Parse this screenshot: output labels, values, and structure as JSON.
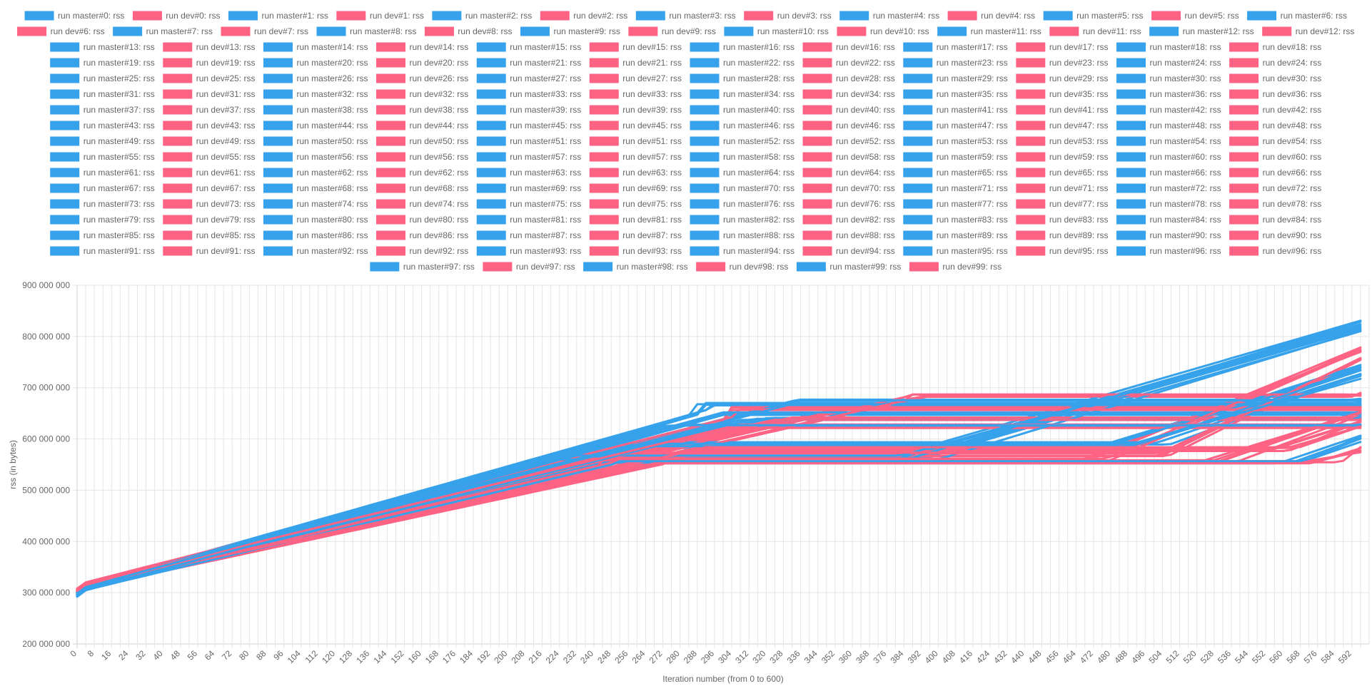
{
  "chart_data": {
    "type": "line",
    "title": "",
    "xlabel": "Iteration number (from 0 to 600)",
    "ylabel": "rss (in bytes)",
    "xlim": [
      0,
      600
    ],
    "ylim": [
      200000000,
      900000000
    ],
    "y_ticks": [
      200000000,
      300000000,
      400000000,
      500000000,
      600000000,
      700000000,
      800000000,
      900000000
    ],
    "y_tick_labels": [
      "200 000 000",
      "300 000 000",
      "400 000 000",
      "500 000 000",
      "600 000 000",
      "700 000 000",
      "800 000 000",
      "900 000 000"
    ],
    "x_tick_step": 4,
    "x_tick_label_step": 8,
    "x_tick_max": 596,
    "grid": true,
    "legend_position": "top",
    "colors": {
      "master": "#36a2eb",
      "dev": "#ff6384",
      "master_fill": "rgba(54,162,235,0.5)",
      "dev_fill": "rgba(255,99,132,0.5)"
    },
    "legend_entries": [
      "run master#0: rss",
      "run dev#0: rss",
      "run master#1: rss",
      "run dev#1: rss",
      "run master#2: rss",
      "run dev#2: rss",
      "run master#3: rss",
      "run dev#3: rss",
      "run master#4: rss",
      "run dev#4: rss",
      "run master#5: rss",
      "run dev#5: rss",
      "run master#6: rss",
      "run dev#6: rss",
      "run master#7: rss",
      "run dev#7: rss",
      "run master#8: rss",
      "run dev#8: rss",
      "run master#9: rss",
      "run dev#9: rss",
      "run master#10: rss",
      "run dev#10: rss",
      "run master#11: rss",
      "run dev#11: rss",
      "run master#12: rss",
      "run dev#12: rss",
      "run master#13: rss",
      "run dev#13: rss",
      "run master#14: rss",
      "run dev#14: rss",
      "run master#15: rss",
      "run dev#15: rss",
      "run master#16: rss",
      "run dev#16: rss",
      "run master#17: rss",
      "run dev#17: rss",
      "run master#18: rss",
      "run dev#18: rss",
      "run master#19: rss",
      "run dev#19: rss",
      "run master#20: rss",
      "run dev#20: rss",
      "run master#21: rss",
      "run dev#21: rss",
      "run master#22: rss",
      "run dev#22: rss",
      "run master#23: rss",
      "run dev#23: rss",
      "run master#24: rss",
      "run dev#24: rss",
      "run master#25: rss",
      "run dev#25: rss",
      "run master#26: rss",
      "run dev#26: rss",
      "run master#27: rss",
      "run dev#27: rss",
      "run master#28: rss",
      "run dev#28: rss",
      "run master#29: rss",
      "run dev#29: rss",
      "run master#30: rss",
      "run dev#30: rss",
      "run master#31: rss",
      "run dev#31: rss",
      "run master#32: rss",
      "run dev#32: rss",
      "run master#33: rss",
      "run dev#33: rss",
      "run master#34: rss",
      "run dev#34: rss",
      "run master#35: rss",
      "run dev#35: rss",
      "run master#36: rss",
      "run dev#36: rss",
      "run master#37: rss",
      "run dev#37: rss",
      "run master#38: rss",
      "run dev#38: rss",
      "run master#39: rss",
      "run dev#39: rss",
      "run master#40: rss",
      "run dev#40: rss",
      "run master#41: rss",
      "run dev#41: rss",
      "run master#42: rss",
      "run dev#42: rss",
      "run master#43: rss",
      "run dev#43: rss",
      "run master#44: rss",
      "run dev#44: rss",
      "run master#45: rss",
      "run dev#45: rss",
      "run master#46: rss",
      "run dev#46: rss",
      "run master#47: rss",
      "run dev#47: rss",
      "run master#48: rss",
      "run dev#48: rss",
      "run master#49: rss",
      "run dev#49: rss",
      "run master#50: rss",
      "run dev#50: rss",
      "run master#51: rss",
      "run dev#51: rss",
      "run master#52: rss",
      "run dev#52: rss",
      "run master#53: rss",
      "run dev#53: rss",
      "run master#54: rss",
      "run dev#54: rss",
      "run master#55: rss",
      "run dev#55: rss",
      "run master#56: rss",
      "run dev#56: rss",
      "run master#57: rss",
      "run dev#57: rss",
      "run master#58: rss",
      "run dev#58: rss",
      "run master#59: rss",
      "run dev#59: rss",
      "run master#60: rss",
      "run dev#60: rss",
      "run master#61: rss",
      "run dev#61: rss",
      "run master#62: rss",
      "run dev#62: rss",
      "run master#63: rss",
      "run dev#63: rss",
      "run master#64: rss",
      "run dev#64: rss",
      "run master#65: rss",
      "run dev#65: rss",
      "run master#66: rss",
      "run dev#66: rss",
      "run master#67: rss",
      "run dev#67: rss",
      "run master#68: rss",
      "run dev#68: rss",
      "run master#69: rss",
      "run dev#69: rss",
      "run master#70: rss",
      "run dev#70: rss",
      "run master#71: rss",
      "run dev#71: rss",
      "run master#72: rss",
      "run dev#72: rss",
      "run master#73: rss",
      "run dev#73: rss",
      "run master#74: rss",
      "run dev#74: rss",
      "run master#75: rss",
      "run dev#75: rss",
      "run master#76: rss",
      "run dev#76: rss",
      "run master#77: rss",
      "run dev#77: rss",
      "run master#78: rss",
      "run dev#78: rss",
      "run master#79: rss",
      "run dev#79: rss",
      "run master#80: rss",
      "run dev#80: rss",
      "run master#81: rss",
      "run dev#81: rss",
      "run master#82: rss",
      "run dev#82: rss",
      "run master#83: rss",
      "run dev#83: rss",
      "run master#84: rss",
      "run dev#84: rss",
      "run master#85: rss",
      "run dev#85: rss",
      "run master#86: rss",
      "run dev#86: rss",
      "run master#87: rss",
      "run dev#87: rss",
      "run master#88: rss",
      "run dev#88: rss",
      "run master#89: rss",
      "run dev#89: rss",
      "run master#90: rss",
      "run dev#90: rss",
      "run master#91: rss",
      "run dev#91: rss",
      "run master#92: rss",
      "run dev#92: rss",
      "run master#93: rss",
      "run dev#93: rss",
      "run master#94: rss",
      "run dev#94: rss",
      "run master#95: rss",
      "run dev#95: rss",
      "run master#96: rss",
      "run dev#96: rss",
      "run master#97: rss",
      "run dev#97: rss",
      "run master#98: rss",
      "run dev#98: rss",
      "run master#99: rss",
      "run dev#99: rss"
    ],
    "series_groups": [
      {
        "name": "run master#0-99: rss",
        "color_key": "master",
        "shape": [
          {
            "start": 305000000,
            "slope": 1200000,
            "plateau_x": 290,
            "plateau_y": 668000000,
            "resume_x": 600,
            "end_y": 668000000
          },
          {
            "start": 305000000,
            "slope": 1140000,
            "plateau_x": 300,
            "plateau_y": 648000000,
            "resume_x": 600,
            "end_y": 648000000
          },
          {
            "start": 305000000,
            "slope": 1060000,
            "plateau_x": 320,
            "plateau_y": 640000000,
            "resume_x": 600,
            "end_y": 640000000
          },
          {
            "start": 305000000,
            "slope": 1130000,
            "plateau_x": 222,
            "plateau_y": 558000000,
            "resume_x": 380,
            "end_y": 825000000
          },
          {
            "start": 305000000,
            "slope": 1125000,
            "plateau_x": 230,
            "plateau_y": 565000000,
            "resume_x": 392,
            "end_y": 812000000
          },
          {
            "start": 305000000,
            "slope": 1080000,
            "plateau_x": 260,
            "plateau_y": 585000000,
            "resume_x": 480,
            "end_y": 740000000
          },
          {
            "start": 305000000,
            "slope": 1050000,
            "plateau_x": 270,
            "plateau_y": 590000000,
            "resume_x": 500,
            "end_y": 720000000
          },
          {
            "start": 305000000,
            "slope": 1000000,
            "plateau_x": 246,
            "plateau_y": 553000000,
            "resume_x": 560,
            "end_y": 600000000
          },
          {
            "start": 305000000,
            "slope": 1100000,
            "plateau_x": 340,
            "plateau_y": 675000000,
            "resume_x": 600,
            "end_y": 675000000
          },
          {
            "start": 305000000,
            "slope": 1160000,
            "plateau_x": 280,
            "plateau_y": 630000000,
            "resume_x": 600,
            "end_y": 630000000
          }
        ]
      },
      {
        "name": "run dev#0-99: rss",
        "color_key": "dev",
        "shape": [
          {
            "start": 310000000,
            "slope": 1080000,
            "plateau_x": 300,
            "plateau_y": 660000000,
            "resume_x": 600,
            "end_y": 660000000
          },
          {
            "start": 310000000,
            "slope": 980000,
            "plateau_x": 370,
            "plateau_y": 660000000,
            "resume_x": 600,
            "end_y": 660000000
          },
          {
            "start": 310000000,
            "slope": 960000,
            "plateau_x": 390,
            "plateau_y": 685000000,
            "resume_x": 600,
            "end_y": 685000000
          },
          {
            "start": 310000000,
            "slope": 1000000,
            "plateau_x": 360,
            "plateau_y": 640000000,
            "resume_x": 600,
            "end_y": 640000000
          },
          {
            "start": 310000000,
            "slope": 1040000,
            "plateau_x": 250,
            "plateau_y": 560000000,
            "resume_x": 470,
            "end_y": 775000000
          },
          {
            "start": 310000000,
            "slope": 1000000,
            "plateau_x": 262,
            "plateau_y": 570000000,
            "resume_x": 500,
            "end_y": 760000000
          },
          {
            "start": 310000000,
            "slope": 940000,
            "plateau_x": 240,
            "plateau_y": 555000000,
            "resume_x": 530,
            "end_y": 650000000
          },
          {
            "start": 310000000,
            "slope": 920000,
            "plateau_x": 290,
            "plateau_y": 580000000,
            "resume_x": 560,
            "end_y": 630000000
          },
          {
            "start": 310000000,
            "slope": 900000,
            "plateau_x": 270,
            "plateau_y": 555000000,
            "resume_x": 580,
            "end_y": 580000000
          },
          {
            "start": 310000000,
            "slope": 1020000,
            "plateau_x": 320,
            "plateau_y": 625000000,
            "resume_x": 600,
            "end_y": 625000000
          }
        ]
      }
    ]
  }
}
